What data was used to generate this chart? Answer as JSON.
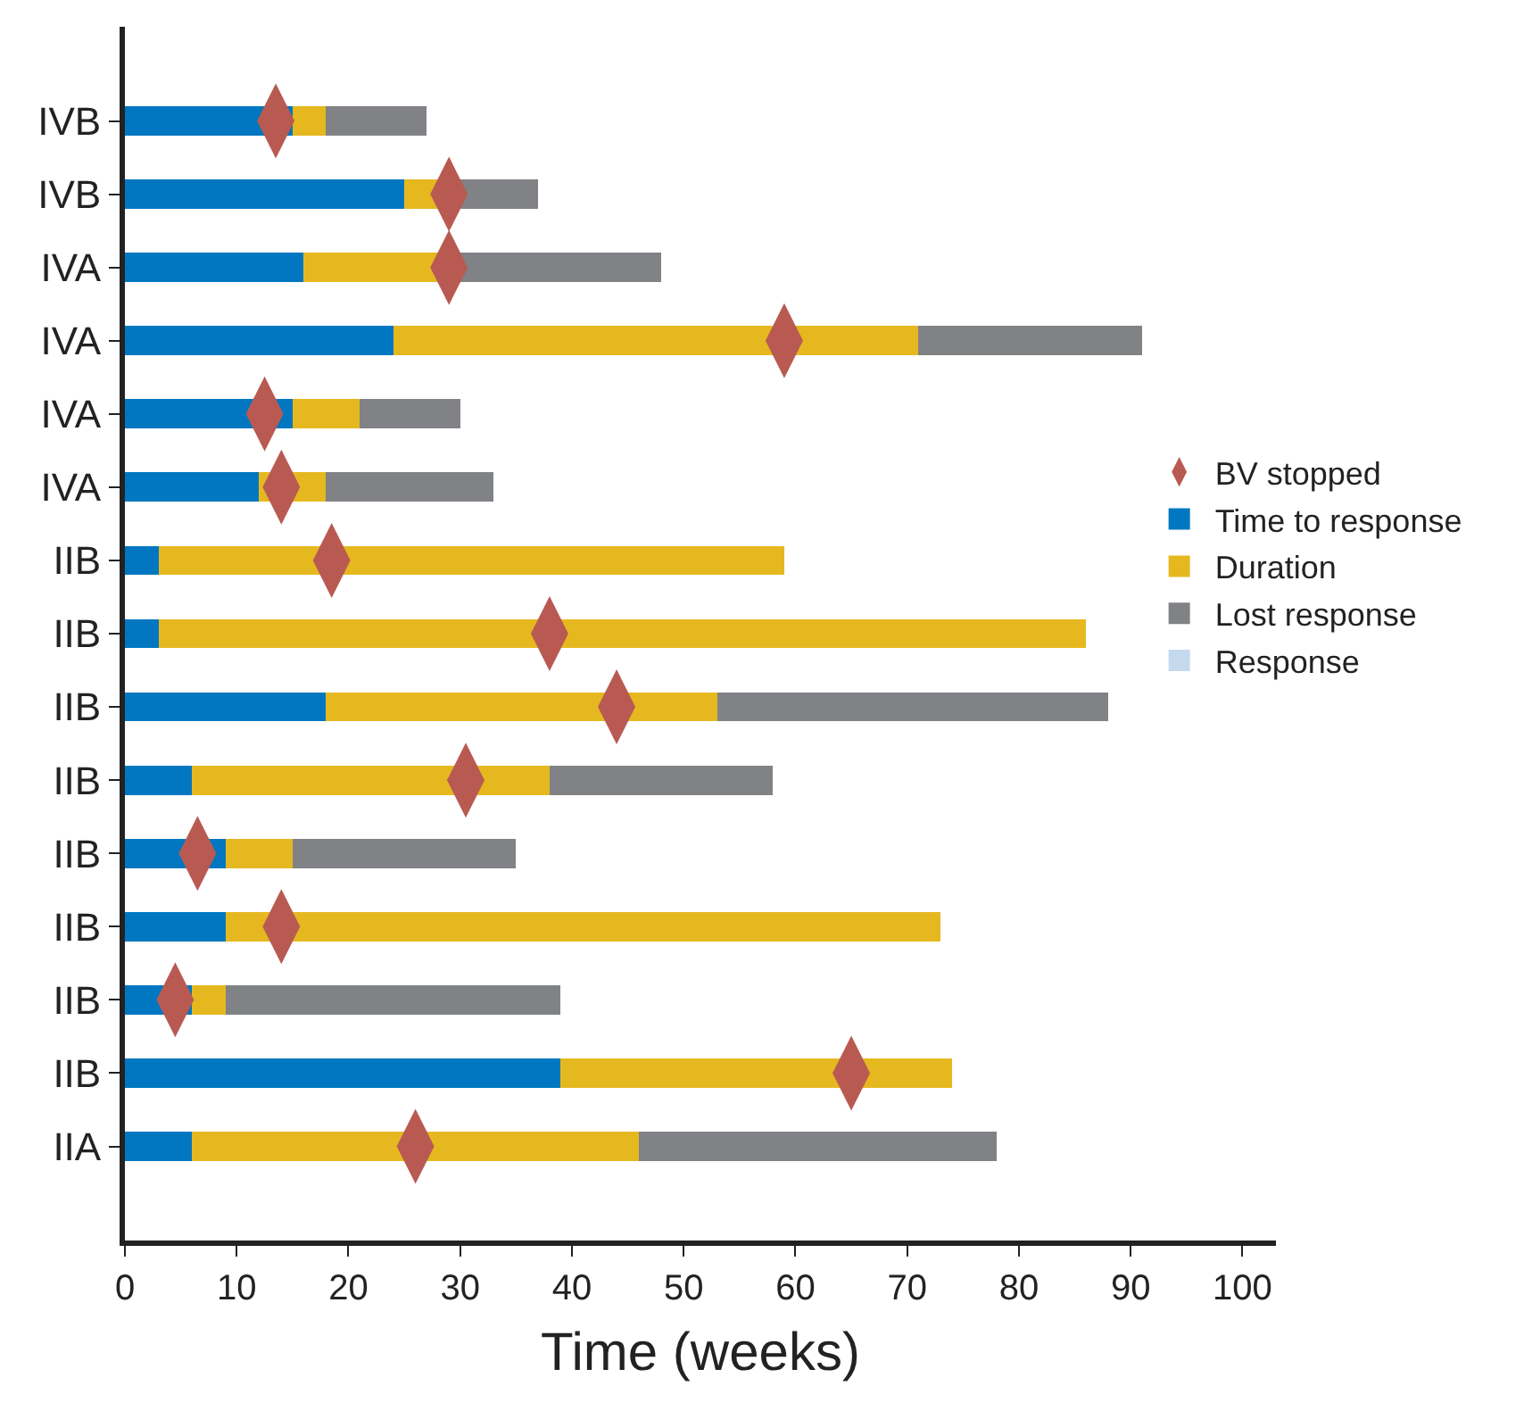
{
  "chart_data": {
    "type": "bar",
    "orientation": "horizontal",
    "stacked": true,
    "xlabel": "Time (weeks)",
    "categories": [
      "IVB",
      "IVB",
      "IVA",
      "IVA",
      "IVA",
      "IVA",
      "IIB",
      "IIB",
      "IIB",
      "IIB",
      "IIB",
      "IIB",
      "IIB",
      "IIB",
      "IIA"
    ],
    "series": [
      {
        "name": "BV stopped",
        "type": "scatter",
        "color": "#b95a52",
        "values": [
          13.5,
          29,
          29,
          59,
          12.5,
          14,
          18.5,
          38,
          44,
          30.5,
          6.5,
          14,
          4.5,
          65,
          26
        ]
      },
      {
        "name": "Time to response",
        "color": "#0077c0",
        "values": [
          15,
          25,
          16,
          24,
          15,
          12,
          3,
          3,
          18,
          6,
          9,
          9,
          6,
          39,
          6
        ]
      },
      {
        "name": "Duration",
        "color": "#e6b820",
        "values": [
          3,
          3,
          12,
          47,
          6,
          6,
          56,
          83,
          35,
          32,
          6,
          64,
          3,
          35,
          40
        ]
      },
      {
        "name": "Lost response",
        "color": "#808285",
        "values": [
          9,
          9,
          20,
          20,
          9,
          15,
          null,
          null,
          35,
          20,
          20,
          null,
          30,
          null,
          32
        ]
      },
      {
        "name": "Response",
        "color": "#c5d9ee",
        "values": [
          null,
          null,
          null,
          null,
          null,
          null,
          null,
          null,
          null,
          null,
          null,
          null,
          null,
          null,
          null
        ]
      }
    ],
    "xlim": [
      0,
      103
    ],
    "xticks": [
      0,
      10,
      20,
      30,
      40,
      50,
      60,
      70,
      80,
      90,
      100
    ],
    "legend": "right"
  }
}
